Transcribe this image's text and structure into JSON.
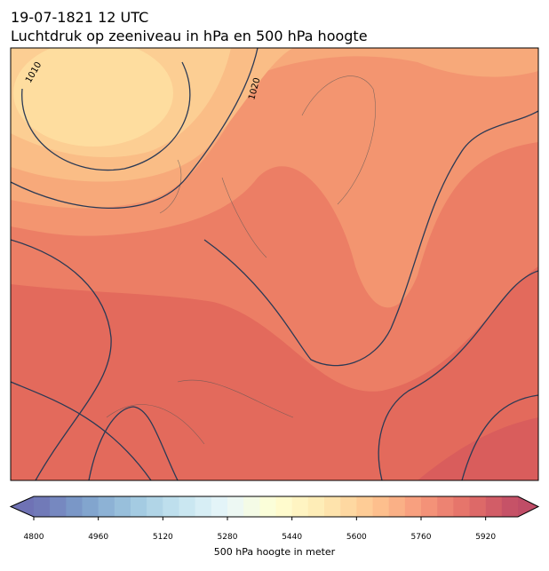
{
  "header": {
    "title": "19-07-1821 12 UTC",
    "subtitle": "Luchtdruk op zeeniveau in hPa en 500 hPa hoogte"
  },
  "map": {
    "isobar_labels": [
      "1010",
      "1020"
    ]
  },
  "colorbar": {
    "label": "500 hPa hoogte in meter",
    "lim": [
      4800,
      6000
    ],
    "step": 40,
    "ticks": [
      4800,
      4960,
      5120,
      5280,
      5440,
      5600,
      5760,
      5920
    ],
    "colormap": [
      "#313695",
      "#4575b4",
      "#74add1",
      "#abd9e9",
      "#e0f3f8",
      "#ffffbf",
      "#fee090",
      "#fdae61",
      "#f46d43",
      "#d73027",
      "#a50026"
    ],
    "alpha": 0.7
  }
}
